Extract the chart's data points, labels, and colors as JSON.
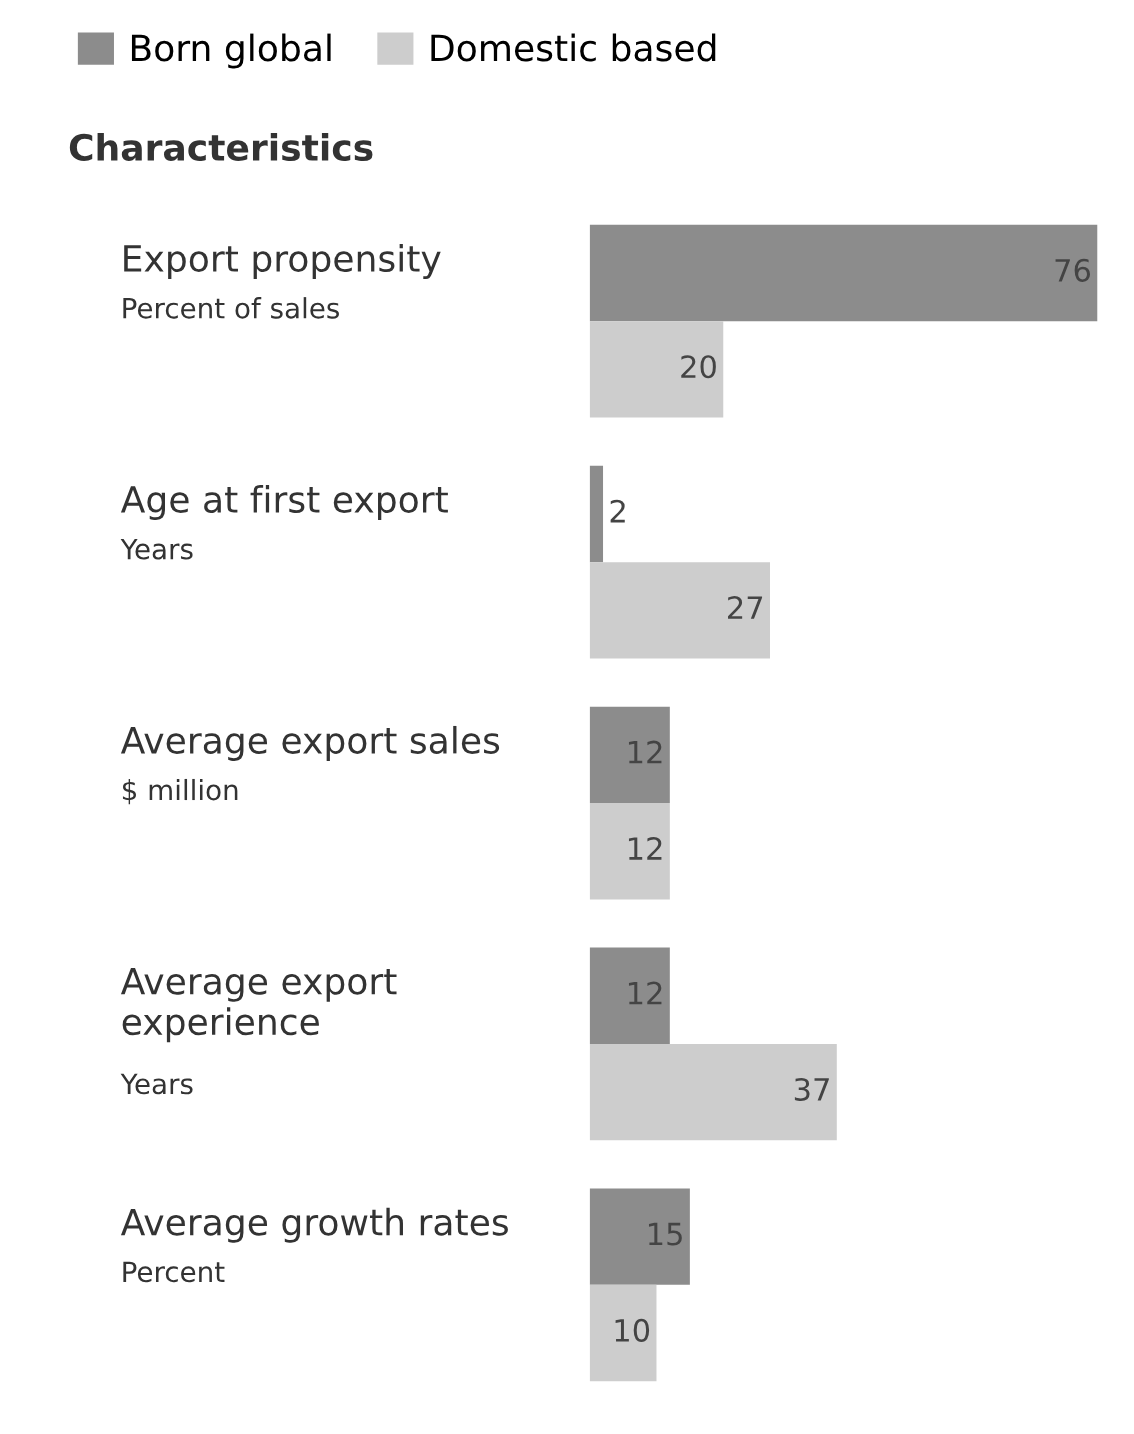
{
  "chart_data": {
    "type": "bar",
    "orientation": "horizontal",
    "ylabel": "Characteristics",
    "categories": [
      "Export propensity\nPercent of sales",
      "Age at first export\nYears",
      "Average export sales\n$ million",
      "Average export\nexperience\nYears",
      "Average growth rates\nPercent"
    ],
    "series": [
      {
        "name": "Born global",
        "color": "#8c8c8c",
        "values": [
          76,
          2,
          12,
          12,
          15
        ]
      },
      {
        "name": "Domestic based",
        "color": "#cdcdcd",
        "values": [
          20,
          27,
          12,
          37,
          10
        ]
      }
    ],
    "data_labels": true,
    "legend": "top left"
  }
}
